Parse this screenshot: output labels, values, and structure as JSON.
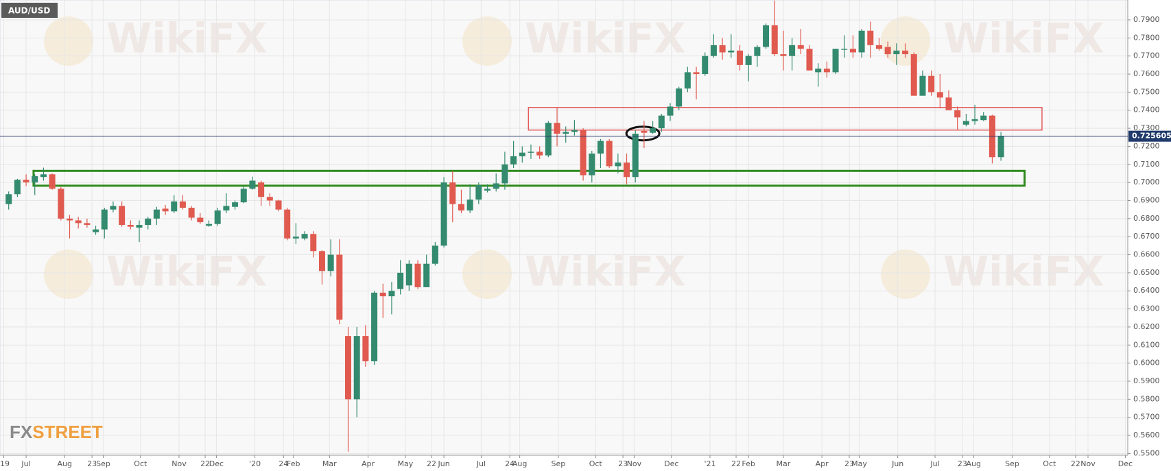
{
  "chart_data": {
    "type": "candlestick",
    "title": "AUD/USD",
    "watermark": "WikiFX",
    "logo": [
      "FX",
      "STREET"
    ],
    "up_color": "#338a6e",
    "down_color": "#e05a4f",
    "grid": true,
    "x": [
      "2019-06-17",
      "2019-06-24",
      "2019-07-01",
      "2019-07-08",
      "2019-07-15",
      "2019-07-22",
      "2019-07-29",
      "2019-08-05",
      "2019-08-12",
      "2019-08-19",
      "2019-08-26",
      "2019-09-02",
      "2019-09-09",
      "2019-09-16",
      "2019-09-23",
      "2019-09-30",
      "2019-10-07",
      "2019-10-14",
      "2019-10-21",
      "2019-10-28",
      "2019-11-04",
      "2019-11-11",
      "2019-11-18",
      "2019-11-25",
      "2019-12-02",
      "2019-12-09",
      "2019-12-16",
      "2019-12-23",
      "2019-12-30",
      "2020-01-06",
      "2020-01-13",
      "2020-01-20",
      "2020-01-27",
      "2020-02-03",
      "2020-02-10",
      "2020-02-17",
      "2020-02-24",
      "2020-03-02",
      "2020-03-09",
      "2020-03-16",
      "2020-03-23",
      "2020-03-30",
      "2020-04-06",
      "2020-04-13",
      "2020-04-20",
      "2020-04-27",
      "2020-05-04",
      "2020-05-11",
      "2020-05-18",
      "2020-05-25",
      "2020-06-01",
      "2020-06-08",
      "2020-06-15",
      "2020-06-22",
      "2020-06-29",
      "2020-07-06",
      "2020-07-13",
      "2020-07-20",
      "2020-07-27",
      "2020-08-03",
      "2020-08-10",
      "2020-08-17",
      "2020-08-24",
      "2020-08-31",
      "2020-09-07",
      "2020-09-14",
      "2020-09-21",
      "2020-09-28",
      "2020-10-05",
      "2020-10-12",
      "2020-10-19",
      "2020-10-26",
      "2020-11-02",
      "2020-11-09",
      "2020-11-16",
      "2020-11-23",
      "2020-11-30",
      "2020-12-07",
      "2020-12-14",
      "2020-12-21",
      "2020-12-28",
      "2021-01-04",
      "2021-01-11",
      "2021-01-18",
      "2021-01-25",
      "2021-02-01",
      "2021-02-08",
      "2021-02-15",
      "2021-02-22",
      "2021-03-01",
      "2021-03-08",
      "2021-03-15",
      "2021-03-22",
      "2021-03-29",
      "2021-04-05",
      "2021-04-12",
      "2021-04-19",
      "2021-04-26",
      "2021-05-03",
      "2021-05-10",
      "2021-05-17",
      "2021-05-24",
      "2021-05-31",
      "2021-06-07",
      "2021-06-14",
      "2021-06-21",
      "2021-06-28",
      "2021-07-05",
      "2021-07-12",
      "2021-07-19",
      "2021-07-26",
      "2021-08-02",
      "2021-08-09",
      "2021-08-16",
      "2021-08-23"
    ],
    "open": [
      0.688,
      0.6935,
      0.7015,
      0.7,
      0.703,
      0.7045,
      0.6965,
      0.68,
      0.679,
      0.6775,
      0.6725,
      0.674,
      0.685,
      0.687,
      0.6765,
      0.675,
      0.6765,
      0.68,
      0.6855,
      0.684,
      0.6895,
      0.686,
      0.6805,
      0.676,
      0.677,
      0.6845,
      0.6865,
      0.689,
      0.6965,
      0.7,
      0.692,
      0.69,
      0.685,
      0.669,
      0.669,
      0.6715,
      0.662,
      0.651,
      0.66,
      0.615,
      0.58,
      0.615,
      0.601,
      0.639,
      0.637,
      0.641,
      0.643,
      0.655,
      0.642,
      0.655,
      0.665,
      0.7,
      0.688,
      0.6845,
      0.6905,
      0.6955,
      0.6965,
      0.6995,
      0.71,
      0.7145,
      0.7165,
      0.717,
      0.715,
      0.733,
      0.727,
      0.728,
      0.729,
      0.704,
      0.716,
      0.723,
      0.709,
      0.711,
      0.703,
      0.7285,
      0.7275,
      0.73,
      0.737,
      0.742,
      0.752,
      0.761,
      0.76,
      0.77,
      0.776,
      0.772,
      0.773,
      0.765,
      0.77,
      0.775,
      0.787,
      0.771,
      0.77,
      0.776,
      0.774,
      0.761,
      0.763,
      0.761,
      0.774,
      0.774,
      0.772,
      0.784,
      0.776,
      0.775,
      0.771,
      0.773,
      0.771,
      0.748,
      0.759,
      0.75,
      0.747,
      0.74,
      0.732,
      0.734,
      0.7345,
      0.737,
      0.714
    ],
    "high": [
      0.695,
      0.702,
      0.7045,
      0.7045,
      0.7082,
      0.705,
      0.6975,
      0.682,
      0.681,
      0.68,
      0.676,
      0.686,
      0.6895,
      0.6895,
      0.679,
      0.679,
      0.681,
      0.6865,
      0.6875,
      0.693,
      0.693,
      0.687,
      0.683,
      0.679,
      0.686,
      0.694,
      0.69,
      0.698,
      0.7032,
      0.701,
      0.694,
      0.6905,
      0.686,
      0.6775,
      0.673,
      0.673,
      0.6625,
      0.6685,
      0.6685,
      0.62,
      0.62,
      0.621,
      0.64,
      0.644,
      0.645,
      0.657,
      0.657,
      0.657,
      0.66,
      0.667,
      0.703,
      0.7065,
      0.696,
      0.699,
      0.7,
      0.699,
      0.705,
      0.717,
      0.723,
      0.72,
      0.721,
      0.72,
      0.734,
      0.7415,
      0.731,
      0.7345,
      0.73,
      0.7175,
      0.724,
      0.724,
      0.716,
      0.716,
      0.729,
      0.734,
      0.734,
      0.738,
      0.744,
      0.753,
      0.764,
      0.764,
      0.772,
      0.782,
      0.78,
      0.782,
      0.776,
      0.771,
      0.776,
      0.788,
      0.8007,
      0.784,
      0.78,
      0.785,
      0.776,
      0.766,
      0.767,
      0.774,
      0.7815,
      0.7815,
      0.785,
      0.789,
      0.78,
      0.778,
      0.777,
      0.777,
      0.772,
      0.762,
      0.762,
      0.76,
      0.751,
      0.742,
      0.738,
      0.743,
      0.739,
      0.7375,
      0.728
    ],
    "low": [
      0.685,
      0.692,
      0.698,
      0.693,
      0.701,
      0.696,
      0.679,
      0.669,
      0.6745,
      0.675,
      0.671,
      0.669,
      0.6835,
      0.6755,
      0.674,
      0.667,
      0.674,
      0.6765,
      0.682,
      0.683,
      0.685,
      0.679,
      0.677,
      0.6755,
      0.676,
      0.683,
      0.685,
      0.6885,
      0.696,
      0.687,
      0.687,
      0.684,
      0.668,
      0.666,
      0.668,
      0.6585,
      0.6435,
      0.648,
      0.6215,
      0.551,
      0.57,
      0.598,
      0.599,
      0.625,
      0.627,
      0.638,
      0.64,
      0.641,
      0.642,
      0.654,
      0.664,
      0.678,
      0.683,
      0.683,
      0.688,
      0.6945,
      0.695,
      0.696,
      0.708,
      0.711,
      0.713,
      0.713,
      0.714,
      0.72,
      0.722,
      0.726,
      0.701,
      0.7,
      0.708,
      0.708,
      0.705,
      0.699,
      0.7,
      0.719,
      0.727,
      0.728,
      0.734,
      0.74,
      0.75,
      0.746,
      0.759,
      0.769,
      0.768,
      0.769,
      0.762,
      0.756,
      0.764,
      0.774,
      0.77,
      0.762,
      0.762,
      0.771,
      0.763,
      0.753,
      0.758,
      0.76,
      0.769,
      0.769,
      0.769,
      0.769,
      0.773,
      0.769,
      0.765,
      0.769,
      0.748,
      0.748,
      0.748,
      0.741,
      0.74,
      0.729,
      0.731,
      0.732,
      0.734,
      0.7105,
      0.712
    ],
    "close": [
      0.6935,
      0.7015,
      0.7,
      0.7035,
      0.7045,
      0.6965,
      0.68,
      0.679,
      0.6775,
      0.6765,
      0.674,
      0.685,
      0.687,
      0.6765,
      0.6755,
      0.6765,
      0.68,
      0.685,
      0.684,
      0.6895,
      0.686,
      0.6805,
      0.678,
      0.677,
      0.6845,
      0.687,
      0.689,
      0.6965,
      0.701,
      0.692,
      0.69,
      0.685,
      0.669,
      0.67,
      0.6715,
      0.662,
      0.651,
      0.66,
      0.624,
      0.58,
      0.615,
      0.601,
      0.639,
      0.637,
      0.64,
      0.65,
      0.655,
      0.642,
      0.655,
      0.665,
      0.7,
      0.688,
      0.6845,
      0.6905,
      0.6985,
      0.6965,
      0.6995,
      0.71,
      0.7145,
      0.7165,
      0.717,
      0.715,
      0.733,
      0.727,
      0.728,
      0.729,
      0.704,
      0.716,
      0.723,
      0.709,
      0.711,
      0.703,
      0.727,
      0.7275,
      0.73,
      0.737,
      0.742,
      0.752,
      0.761,
      0.76,
      0.77,
      0.776,
      0.772,
      0.773,
      0.765,
      0.77,
      0.775,
      0.787,
      0.771,
      0.77,
      0.776,
      0.774,
      0.762,
      0.763,
      0.761,
      0.774,
      0.774,
      0.772,
      0.784,
      0.776,
      0.774,
      0.771,
      0.773,
      0.771,
      0.748,
      0.759,
      0.75,
      0.747,
      0.74,
      0.736,
      0.734,
      0.735,
      0.737,
      0.714,
      0.7256
    ],
    "last_price": {
      "value": 0.725605,
      "label": "0.725605"
    },
    "zones": [
      {
        "color": "#e45b5b",
        "x": [
          "2020-08-08",
          "2021-09-25"
        ],
        "y": [
          0.729,
          0.7415
        ]
      },
      {
        "color": "#2f8a1e",
        "x": [
          "2019-07-07",
          "2021-09-11"
        ],
        "y": [
          0.6982,
          0.7064
        ]
      }
    ],
    "marker": {
      "color": "#111111",
      "x": "2020-11-08",
      "y": 0.7271
    },
    "xlim": [
      "2019-06-10",
      "2021-12-03"
    ],
    "ylim": [
      0.549,
      0.801
    ],
    "xticks": [
      {
        "value": "2019-06-13",
        "label": "'19"
      },
      {
        "value": "2019-07-01",
        "label": "Jul"
      },
      {
        "value": "2019-08-01",
        "label": "Aug"
      },
      {
        "value": "2019-08-23",
        "label": "23"
      },
      {
        "value": "2019-09-01",
        "label": "Sep"
      },
      {
        "value": "2019-10-01",
        "label": "Oct"
      },
      {
        "value": "2019-11-01",
        "label": "Nov"
      },
      {
        "value": "2019-11-22",
        "label": "22"
      },
      {
        "value": "2019-12-01",
        "label": "Dec"
      },
      {
        "value": "2020-01-01",
        "label": "'20"
      },
      {
        "value": "2020-01-24",
        "label": "24"
      },
      {
        "value": "2020-02-01",
        "label": "Feb"
      },
      {
        "value": "2020-03-01",
        "label": "Mar"
      },
      {
        "value": "2020-04-01",
        "label": "Apr"
      },
      {
        "value": "2020-05-01",
        "label": "May"
      },
      {
        "value": "2020-05-22",
        "label": "22"
      },
      {
        "value": "2020-06-01",
        "label": "Jun"
      },
      {
        "value": "2020-07-01",
        "label": "Jul"
      },
      {
        "value": "2020-07-24",
        "label": "24"
      },
      {
        "value": "2020-08-01",
        "label": "Aug"
      },
      {
        "value": "2020-09-01",
        "label": "Sep"
      },
      {
        "value": "2020-10-01",
        "label": "Oct"
      },
      {
        "value": "2020-10-23",
        "label": "23"
      },
      {
        "value": "2020-11-01",
        "label": "Nov"
      },
      {
        "value": "2020-12-01",
        "label": "Dec"
      },
      {
        "value": "2021-01-01",
        "label": "'21"
      },
      {
        "value": "2021-01-22",
        "label": "22"
      },
      {
        "value": "2021-02-01",
        "label": "Feb"
      },
      {
        "value": "2021-03-01",
        "label": "Mar"
      },
      {
        "value": "2021-04-01",
        "label": "Apr"
      },
      {
        "value": "2021-04-23",
        "label": "23"
      },
      {
        "value": "2021-05-01",
        "label": "May"
      },
      {
        "value": "2021-06-01",
        "label": "Jun"
      },
      {
        "value": "2021-07-01",
        "label": "Jul"
      },
      {
        "value": "2021-07-23",
        "label": "23"
      },
      {
        "value": "2021-08-01",
        "label": "Aug"
      },
      {
        "value": "2021-09-01",
        "label": "Sep"
      },
      {
        "value": "2021-10-01",
        "label": "Oct"
      },
      {
        "value": "2021-10-22",
        "label": "22"
      },
      {
        "value": "2021-11-01",
        "label": "Nov"
      },
      {
        "value": "2021-12-01",
        "label": "Dec"
      }
    ],
    "yticks": [
      {
        "value": 0.55,
        "label": "0.5500"
      },
      {
        "value": 0.56,
        "label": "0.5600"
      },
      {
        "value": 0.57,
        "label": "0.5700"
      },
      {
        "value": 0.58,
        "label": "0.5800"
      },
      {
        "value": 0.59,
        "label": "0.5900"
      },
      {
        "value": 0.6,
        "label": "0.6000"
      },
      {
        "value": 0.61,
        "label": "0.6100"
      },
      {
        "value": 0.62,
        "label": "0.6200"
      },
      {
        "value": 0.63,
        "label": "0.6300"
      },
      {
        "value": 0.64,
        "label": "0.6400"
      },
      {
        "value": 0.65,
        "label": "0.6500"
      },
      {
        "value": 0.66,
        "label": "0.6600"
      },
      {
        "value": 0.67,
        "label": "0.6700"
      },
      {
        "value": 0.68,
        "label": "0.6800"
      },
      {
        "value": 0.69,
        "label": "0.6900"
      },
      {
        "value": 0.7,
        "label": "0.7000"
      },
      {
        "value": 0.71,
        "label": "0.7100"
      },
      {
        "value": 0.72,
        "label": "0.7200"
      },
      {
        "value": 0.73,
        "label": "0.7300"
      },
      {
        "value": 0.74,
        "label": "0.7400"
      },
      {
        "value": 0.75,
        "label": "0.7500"
      },
      {
        "value": 0.76,
        "label": "0.7600"
      },
      {
        "value": 0.77,
        "label": "0.7700"
      },
      {
        "value": 0.78,
        "label": "0.7800"
      },
      {
        "value": 0.79,
        "label": "0.7900"
      }
    ]
  }
}
